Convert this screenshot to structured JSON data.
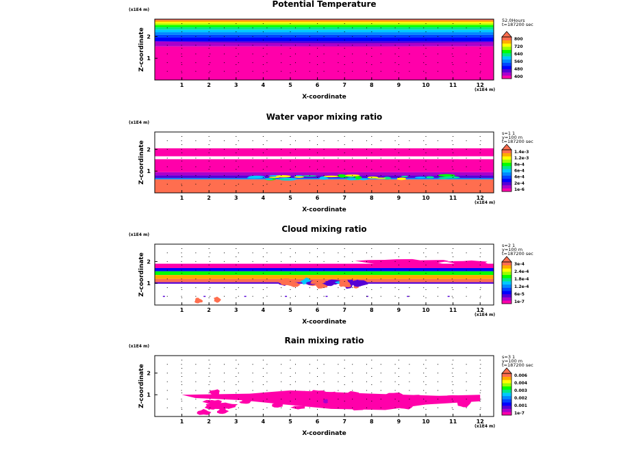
{
  "chart_data": [
    {
      "type": "heatmap",
      "title": "Potential Temperature",
      "xlabel": "X-coordinate",
      "ylabel": "Z-coordinate",
      "x_unit": "(x1E4 m)",
      "y_unit": "(x1E4 m)",
      "xlim": [
        0,
        12.5
      ],
      "ylim": [
        0,
        2.8
      ],
      "x_ticks": [
        "1",
        "2",
        "3",
        "4",
        "5",
        "6",
        "7",
        "8",
        "9",
        "10",
        "11",
        "12"
      ],
      "y_ticks": [
        "1",
        "2"
      ],
      "info": [
        "52.0Hours",
        "t=187200 sec"
      ],
      "colorbar_labels": [
        "800",
        "720",
        "640",
        "560",
        "480",
        "400"
      ],
      "colors": [
        "#ff00aa",
        "#aa00cc",
        "#5500d5",
        "#0000ff",
        "#0044ff",
        "#0088ff",
        "#00c8ff",
        "#00e88a",
        "#00ff00",
        "#99ff00",
        "#ffff00",
        "#ffaa00",
        "#ff6e4f"
      ],
      "grid": "dotted",
      "bands": [
        {
          "z0": 0,
          "z1": 1.55,
          "level": 0
        },
        {
          "z0": 1.55,
          "z1": 1.62,
          "level": 1
        },
        {
          "z0": 1.62,
          "z1": 1.78,
          "level": 2
        },
        {
          "z0": 1.78,
          "z1": 1.95,
          "level": 3
        },
        {
          "z0": 1.95,
          "z1": 2.08,
          "level": 4
        },
        {
          "z0": 2.08,
          "z1": 2.2,
          "level": 5
        },
        {
          "z0": 2.2,
          "z1": 2.32,
          "level": 6
        },
        {
          "z0": 2.32,
          "z1": 2.43,
          "level": 7
        },
        {
          "z0": 2.43,
          "z1": 2.52,
          "level": 8
        },
        {
          "z0": 2.52,
          "z1": 2.6,
          "level": 9
        },
        {
          "z0": 2.6,
          "z1": 2.67,
          "level": 10
        },
        {
          "z0": 2.67,
          "z1": 2.74,
          "level": 11
        },
        {
          "z0": 2.74,
          "z1": 2.8,
          "level": 12
        }
      ]
    },
    {
      "type": "heatmap",
      "title": "Water vapor mixing ratio",
      "xlabel": "X-coordinate",
      "ylabel": "Z-coordinate",
      "x_unit": "(x1E4 m)",
      "y_unit": "(x1E4 m)",
      "xlim": [
        0,
        12.5
      ],
      "ylim": [
        0,
        2.8
      ],
      "x_ticks": [
        "1",
        "2",
        "3",
        "4",
        "5",
        "6",
        "7",
        "8",
        "9",
        "10",
        "11",
        "12"
      ],
      "y_ticks": [
        "1",
        "2"
      ],
      "info": [
        "s=1 1",
        "y=100 m",
        "t=187200 sec"
      ],
      "colorbar_labels": [
        "1.4e-3",
        "1.2e-3",
        "8e-4",
        "6e-4",
        "4e-4",
        "2e-4",
        "1e-6"
      ],
      "colors": [
        "#ff00aa",
        "#aa00cc",
        "#5500d5",
        "#0000ff",
        "#0044ff",
        "#0088ff",
        "#00c8ff",
        "#00e88a",
        "#00ff00",
        "#99ff00",
        "#ffff00",
        "#ffaa00",
        "#ff6e4f"
      ],
      "grid": "dotted",
      "bands": [
        {
          "z0": 0,
          "z1": 0.62,
          "level": 12
        },
        {
          "z0": 0.62,
          "z1": 0.68,
          "level": 5
        },
        {
          "z0": 0.68,
          "z1": 0.8,
          "level": 2
        },
        {
          "z0": 0.8,
          "z1": 0.95,
          "level": 1
        },
        {
          "z0": 0.95,
          "z1": 1.55,
          "level": 0
        },
        {
          "z0": 1.68,
          "z1": 2.05,
          "level": 0
        }
      ]
    },
    {
      "type": "heatmap",
      "title": "Cloud mixing ratio",
      "xlabel": "X-coordinate",
      "ylabel": "Z-coordinate",
      "x_unit": "(x1E4 m)",
      "y_unit": "(x1E4 m)",
      "xlim": [
        0,
        12.5
      ],
      "ylim": [
        0,
        2.8
      ],
      "x_ticks": [
        "1",
        "2",
        "3",
        "4",
        "5",
        "6",
        "7",
        "8",
        "9",
        "10",
        "11",
        "12"
      ],
      "y_ticks": [
        "1",
        "2"
      ],
      "info": [
        "s=2 1",
        "y=100 m",
        "t=187200 sec"
      ],
      "colorbar_labels": [
        "3e-4",
        "2.4e-4",
        "1.8e-4",
        "1.2e-4",
        "6e-5",
        "1e-7"
      ],
      "colors": [
        "#ff00aa",
        "#aa00cc",
        "#5500d5",
        "#0000ff",
        "#0044ff",
        "#0088ff",
        "#00c8ff",
        "#00e88a",
        "#00ff00",
        "#99ff00",
        "#ffff00",
        "#ffaa00",
        "#ff6e4f"
      ],
      "grid": "dotted",
      "bands": [
        {
          "z0": 1.7,
          "z1": 1.9,
          "level": 0
        },
        {
          "z0": 1.55,
          "z1": 1.7,
          "level": 3
        },
        {
          "z0": 1.38,
          "z1": 1.55,
          "level": 8
        },
        {
          "z0": 1.2,
          "z1": 1.38,
          "level": 11
        },
        {
          "z0": 1.05,
          "z1": 1.2,
          "level": 12
        },
        {
          "z0": 0.98,
          "z1": 1.05,
          "level": 2
        }
      ]
    },
    {
      "type": "heatmap",
      "title": "Rain mixing ratio",
      "xlabel": "X-coordinate",
      "ylabel": "Z-coordinate",
      "x_unit": "(x1E4 m)",
      "y_unit": "(x1E4 m)",
      "xlim": [
        0,
        12.5
      ],
      "ylim": [
        0,
        2.8
      ],
      "x_ticks": [
        "1",
        "2",
        "3",
        "4",
        "5",
        "6",
        "7",
        "8",
        "9",
        "10",
        "11",
        "12"
      ],
      "y_ticks": [
        "1",
        "2"
      ],
      "info": [
        "s=3 1",
        "y=100 m",
        "t=187200 sec"
      ],
      "colorbar_labels": [
        "0.006",
        "0.004",
        "0.003",
        "0.002",
        "0.001",
        "1e-7"
      ],
      "colors": [
        "#ff00aa",
        "#aa00cc",
        "#5500d5",
        "#0000ff",
        "#0044ff",
        "#0088ff",
        "#00c8ff",
        "#00e88a",
        "#00ff00",
        "#99ff00",
        "#ffff00",
        "#ffaa00",
        "#ff6e4f"
      ],
      "grid": "dotted",
      "bands": []
    }
  ]
}
